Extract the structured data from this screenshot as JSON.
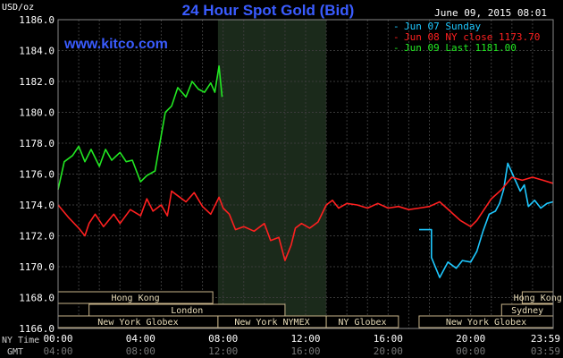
{
  "header": {
    "unit": "USD/oz",
    "title": "24 Hour Spot Gold (Bid)",
    "timestamp": "June 09, 2015 08:01",
    "brand": "www.kitco.com"
  },
  "legend": [
    {
      "label": "Jun 07 Sunday",
      "color": "#1ec8ff"
    },
    {
      "label": "Jun 08 NY close 1173.70",
      "color": "#ff2020"
    },
    {
      "label": "Jun 09 Last 1181.00",
      "color": "#22e822"
    }
  ],
  "sessions": [
    {
      "label": "Hong Kong",
      "row": 0,
      "start": 0,
      "end": 7.5
    },
    {
      "label": "Hong Kong",
      "row": 0,
      "start": 22.5,
      "end": 24
    },
    {
      "label": "London",
      "row": 1,
      "start": 1.5,
      "end": 11
    },
    {
      "label": "Sydney",
      "row": 1,
      "start": 21.5,
      "end": 24
    },
    {
      "label": "New York Globex",
      "row": 2,
      "start": 0,
      "end": 7.75
    },
    {
      "label": "New York NYMEX",
      "row": 2,
      "start": 7.75,
      "end": 13
    },
    {
      "label": "NY Globex",
      "row": 2,
      "start": 13,
      "end": 16.5
    },
    {
      "label": "New York Globex",
      "row": 2,
      "start": 17.5,
      "end": 24
    }
  ],
  "axis_labels": {
    "ny_time": "NY Time",
    "gmt": "GMT"
  },
  "chart_data": {
    "type": "line",
    "title": "24 Hour Spot Gold (Bid)",
    "ylabel": "USD/oz",
    "ylim": [
      1166.0,
      1186.0
    ],
    "yticks": [
      "1166.0",
      "1168.0",
      "1170.0",
      "1172.0",
      "1174.0",
      "1176.0",
      "1178.0",
      "1180.0",
      "1182.0",
      "1184.0",
      "1186.0"
    ],
    "xlim": [
      0,
      24
    ],
    "xticks": [
      "00:00",
      "04:00",
      "08:00",
      "12:00",
      "16:00",
      "20:00",
      "23:59"
    ],
    "xticks_gmt": [
      "04:00",
      "08:00",
      "12:00",
      "16:00",
      "20:00",
      "00:00",
      "03:59"
    ],
    "grid": true,
    "shaded_band": [
      7.75,
      13.0
    ],
    "series": [
      {
        "name": "Jun 07 Sunday",
        "color": "#1ec8ff",
        "x": [
          17.5,
          18.1,
          18.1,
          18.5,
          18.9,
          19.3,
          19.6,
          20.0,
          20.3,
          20.6,
          20.9,
          21.2,
          21.4,
          21.6,
          21.8,
          22.1,
          22.4,
          22.6,
          22.8,
          23.1,
          23.4,
          23.7,
          23.99
        ],
        "y": [
          1172.4,
          1172.4,
          1170.6,
          1169.3,
          1170.3,
          1169.9,
          1170.4,
          1170.3,
          1171.0,
          1172.3,
          1173.4,
          1173.6,
          1174.1,
          1175.0,
          1176.7,
          1175.8,
          1174.9,
          1175.3,
          1173.9,
          1174.3,
          1173.8,
          1174.1,
          1174.2
        ]
      },
      {
        "name": "Jun 08 NY close 1173.70",
        "color": "#ff2020",
        "x": [
          0,
          0.5,
          1.0,
          1.3,
          1.5,
          1.8,
          2.2,
          2.7,
          3.0,
          3.5,
          4.0,
          4.3,
          4.6,
          5.0,
          5.3,
          5.5,
          5.8,
          6.2,
          6.6,
          7.0,
          7.4,
          7.8,
          8.0,
          8.3,
          8.6,
          9.0,
          9.5,
          10.0,
          10.3,
          10.7,
          11.0,
          11.3,
          11.5,
          11.8,
          12.2,
          12.6,
          13.0,
          13.3,
          13.6,
          14.0,
          14.5,
          15.0,
          15.5,
          16.0,
          16.5,
          17.0,
          17.5,
          18.0,
          18.5,
          19.0,
          19.5,
          20.0,
          20.3,
          20.6,
          21.0,
          21.5,
          22.0,
          22.5,
          23.0,
          23.5,
          23.99
        ],
        "y": [
          1174.0,
          1173.2,
          1172.5,
          1172.0,
          1172.8,
          1173.4,
          1172.6,
          1173.4,
          1172.8,
          1173.7,
          1173.3,
          1174.4,
          1173.6,
          1174.0,
          1173.3,
          1174.9,
          1174.6,
          1174.2,
          1174.8,
          1173.9,
          1173.4,
          1174.5,
          1173.8,
          1173.4,
          1172.4,
          1172.6,
          1172.3,
          1172.8,
          1171.7,
          1171.9,
          1170.4,
          1171.4,
          1172.5,
          1172.8,
          1172.5,
          1172.9,
          1174.0,
          1174.3,
          1173.8,
          1174.1,
          1174.0,
          1173.8,
          1174.1,
          1173.8,
          1173.9,
          1173.7,
          1173.8,
          1173.9,
          1174.2,
          1173.6,
          1173.0,
          1172.6,
          1173.0,
          1173.6,
          1174.4,
          1175.0,
          1175.8,
          1175.6,
          1175.8,
          1175.6,
          1175.4
        ]
      },
      {
        "name": "Jun 09 Last 1181.00",
        "color": "#22e822",
        "x": [
          0,
          0.3,
          0.7,
          1.0,
          1.3,
          1.6,
          2.0,
          2.3,
          2.6,
          3.0,
          3.3,
          3.6,
          4.0,
          4.3,
          4.7,
          5.0,
          5.2,
          5.5,
          5.8,
          6.2,
          6.5,
          6.8,
          7.1,
          7.4,
          7.6,
          7.8,
          7.95
        ],
        "y": [
          1175.0,
          1176.8,
          1177.2,
          1177.8,
          1176.8,
          1177.6,
          1176.5,
          1177.6,
          1176.9,
          1177.4,
          1176.8,
          1176.9,
          1175.5,
          1175.9,
          1176.2,
          1178.5,
          1180.0,
          1180.4,
          1181.6,
          1181.0,
          1182.0,
          1181.5,
          1181.3,
          1181.9,
          1181.3,
          1183.0,
          1181.0
        ]
      }
    ]
  }
}
